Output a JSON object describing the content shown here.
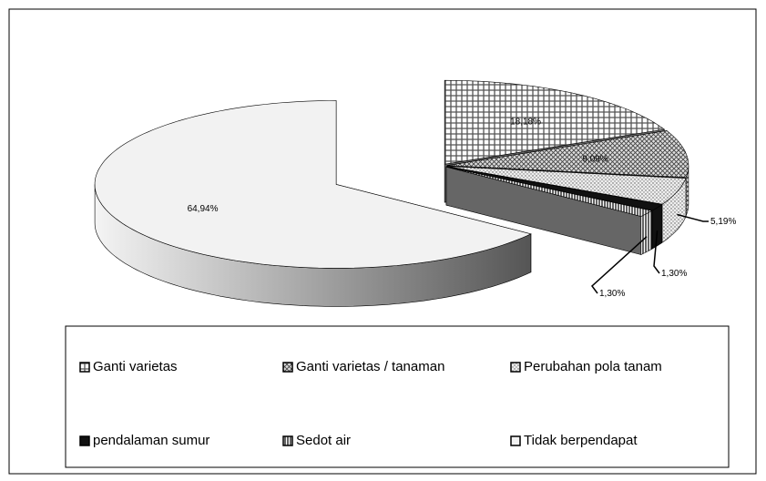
{
  "chart_data": {
    "type": "pie",
    "categories": [
      "Ganti varietas",
      "Ganti varietas / tanaman",
      "Perubahan pola tanam",
      "pendalaman sumur",
      "Sedot air",
      "Tidak berpendapat"
    ],
    "values": [
      18.18,
      9.09,
      5.19,
      1.3,
      1.3,
      64.94
    ],
    "value_labels": [
      "18,18%",
      "9,09%",
      "5,19%",
      "1,30%",
      "1,30%",
      "64,94%"
    ],
    "legend": "bottom"
  }
}
